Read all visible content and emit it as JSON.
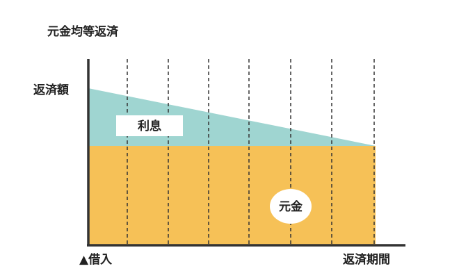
{
  "title": "元金均等返済",
  "y_axis_label": "返済額",
  "x_axis_start_label": "▲借入",
  "x_axis_end_label": "返済期間",
  "areas": {
    "interest": "利息",
    "principal": "元金"
  }
}
